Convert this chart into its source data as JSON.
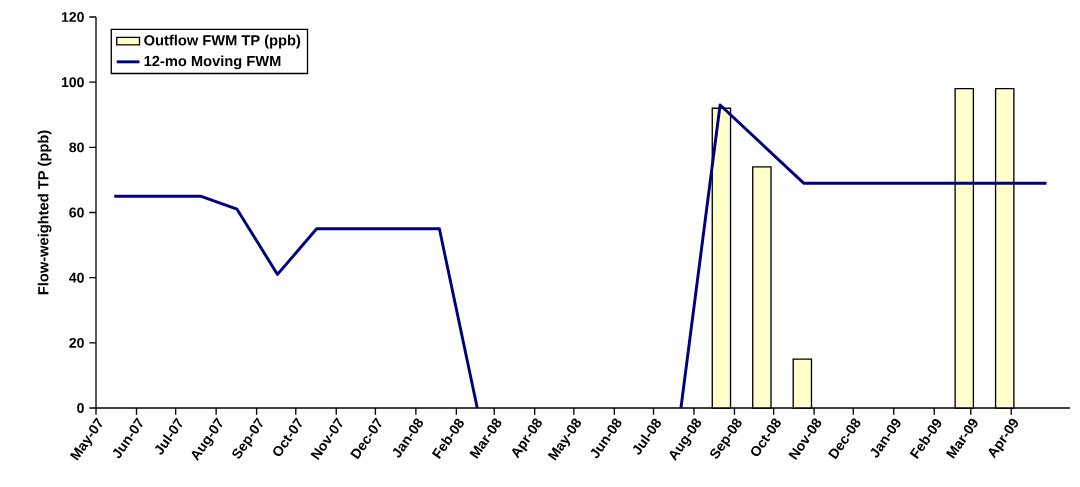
{
  "chart_data": {
    "type": "bar",
    "ylabel": "Flow-weighted TP (ppb)",
    "xlim": [
      "2007-05-01",
      "2009-05-16"
    ],
    "ylim": [
      0,
      120
    ],
    "yticks": [
      0,
      20,
      40,
      60,
      80,
      100,
      120
    ],
    "xticks": [
      {
        "value": "2007-05-01",
        "label": "May-07"
      },
      {
        "value": "2007-06-01",
        "label": "Jun-07"
      },
      {
        "value": "2007-07-01",
        "label": "Jul-07"
      },
      {
        "value": "2007-08-01",
        "label": "Aug-07"
      },
      {
        "value": "2007-09-01",
        "label": "Sep-07"
      },
      {
        "value": "2007-10-01",
        "label": "Oct-07"
      },
      {
        "value": "2007-11-01",
        "label": "Nov-07"
      },
      {
        "value": "2007-12-01",
        "label": "Dec-07"
      },
      {
        "value": "2008-01-01",
        "label": "Jan-08"
      },
      {
        "value": "2008-02-01",
        "label": "Feb-08"
      },
      {
        "value": "2008-03-01",
        "label": "Mar-08"
      },
      {
        "value": "2008-04-01",
        "label": "Apr-08"
      },
      {
        "value": "2008-05-01",
        "label": "May-08"
      },
      {
        "value": "2008-06-01",
        "label": "Jun-08"
      },
      {
        "value": "2008-07-01",
        "label": "Jul-08"
      },
      {
        "value": "2008-08-01",
        "label": "Aug-08"
      },
      {
        "value": "2008-09-01",
        "label": "Sep-08"
      },
      {
        "value": "2008-10-01",
        "label": "Oct-08"
      },
      {
        "value": "2008-11-01",
        "label": "Nov-08"
      },
      {
        "value": "2008-12-01",
        "label": "Dec-08"
      },
      {
        "value": "2009-01-01",
        "label": "Jan-09"
      },
      {
        "value": "2009-02-01",
        "label": "Feb-09"
      },
      {
        "value": "2009-03-01",
        "label": "Mar-09"
      },
      {
        "value": "2009-04-01",
        "label": "Apr-09"
      }
    ],
    "legend": "top left",
    "grid": false,
    "series": [
      {
        "name": "Outflow FWM TP (ppb)",
        "color": "#ffffcc",
        "x": [
          "2008-08-22",
          "2008-09-22",
          "2008-10-23",
          "2009-02-24",
          "2009-03-27"
        ],
        "values": [
          92,
          74,
          15,
          98,
          98
        ]
      },
      {
        "name": "12-mo Moving FWM",
        "type": "line",
        "color": "#000080",
        "x": [
          "2007-05-15",
          "2007-07-20",
          "2007-08-17",
          "2007-09-17",
          "2007-10-17",
          "2008-01-19",
          "2008-02-17",
          "2008-05-01",
          "2008-07-22",
          "2008-08-21",
          "2008-10-24",
          "2009-04-28"
        ],
        "values": [
          65,
          65,
          61,
          41,
          55,
          55,
          0,
          null,
          0,
          93,
          69,
          69
        ]
      }
    ]
  }
}
